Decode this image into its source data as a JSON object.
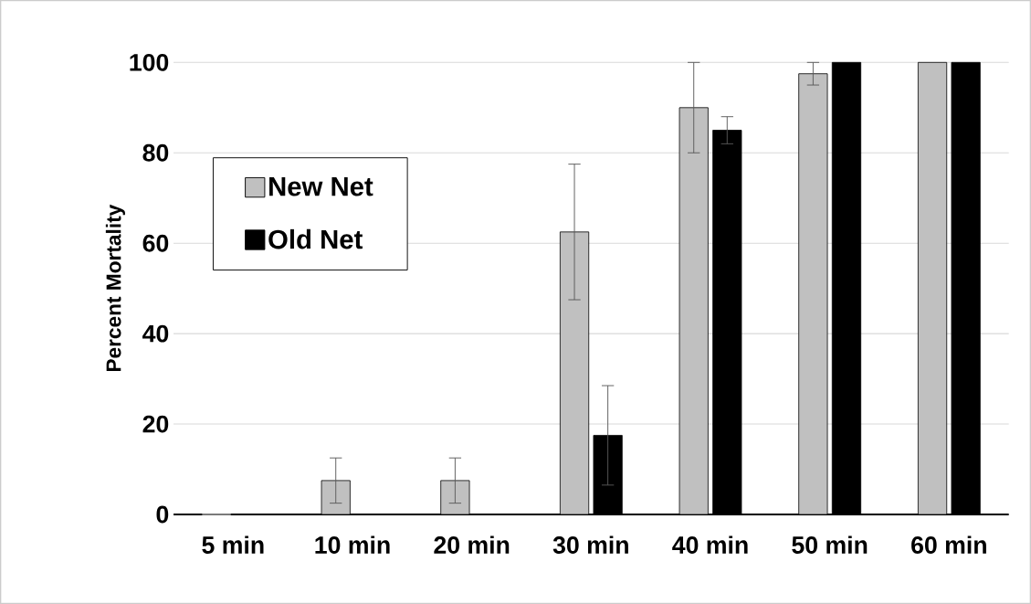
{
  "chart_data": {
    "type": "bar",
    "ylabel": "Percent Mortality",
    "categories": [
      "5 min",
      "10 min",
      "20 min",
      "30 min",
      "40 min",
      "50 min",
      "60 min"
    ],
    "series": [
      {
        "name": "New Net",
        "color": "#c0c0c0",
        "values": [
          0,
          7.5,
          7.5,
          62.5,
          90,
          97.5,
          100
        ],
        "errors": [
          null,
          5,
          5,
          15,
          10,
          2.5,
          null
        ]
      },
      {
        "name": "Old Net",
        "color": "#000000",
        "values": [
          0,
          0,
          0,
          17.5,
          85,
          100,
          100
        ],
        "errors": [
          null,
          null,
          null,
          11,
          3,
          null,
          null
        ]
      }
    ],
    "ylim": [
      0,
      100
    ],
    "yticks": [
      0,
      20,
      40,
      60,
      80,
      100
    ],
    "grid": "y",
    "legend": "left"
  }
}
